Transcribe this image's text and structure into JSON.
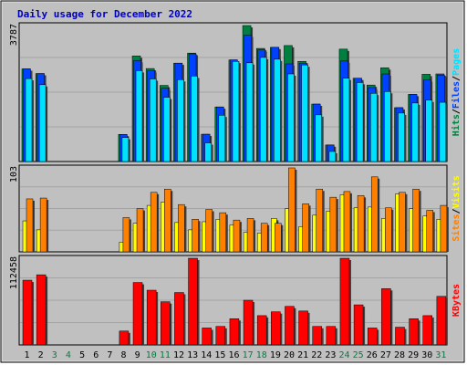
{
  "title": "Daily usage for December 2022",
  "colors": {
    "background": "#c0c0c0",
    "plot": "#c0c0c0",
    "grid": "#a4a4a4",
    "title_text": "#0000c0",
    "hits": "#008040",
    "files": "#0040ff",
    "pages": "#00e0ff",
    "visits": "#ffff00",
    "sites": "#ff8000",
    "kbytes": "#ff0000",
    "weekday_label": "#000000",
    "weekend_label": "#008040"
  },
  "weekend_days": [
    3,
    4,
    10,
    11,
    17,
    18,
    24,
    25,
    31
  ],
  "chart_data": [
    {
      "type": "bar",
      "panel": "hits-files-pages",
      "ymax_label": "3787",
      "ylim": [
        0,
        3787
      ],
      "categories": [
        "1",
        "2",
        "3",
        "4",
        "5",
        "6",
        "7",
        "8",
        "9",
        "10",
        "11",
        "12",
        "13",
        "14",
        "15",
        "16",
        "17",
        "18",
        "19",
        "20",
        "21",
        "22",
        "23",
        "24",
        "25",
        "26",
        "27",
        "28",
        "29",
        "30",
        "31"
      ],
      "legend": [
        "Hits",
        "Files",
        "Pages"
      ],
      "series": [
        {
          "name": "Hits",
          "values": [
            2580,
            2450,
            0,
            0,
            0,
            0,
            0,
            755,
            2940,
            2590,
            2120,
            2740,
            3020,
            760,
            1520,
            2830,
            3787,
            3150,
            3180,
            3230,
            2790,
            1600,
            460,
            3130,
            2320,
            2130,
            2610,
            1500,
            1870,
            2430,
            2440
          ]
        },
        {
          "name": "Files",
          "values": [
            2580,
            2450,
            0,
            0,
            0,
            0,
            0,
            755,
            2810,
            2530,
            2040,
            2740,
            3000,
            760,
            1520,
            2830,
            3520,
            3110,
            3180,
            2720,
            2740,
            1600,
            460,
            2800,
            2320,
            2060,
            2440,
            1500,
            1870,
            2270,
            2410
          ]
        },
        {
          "name": "Pages",
          "values": [
            2310,
            2140,
            0,
            0,
            0,
            0,
            0,
            670,
            2530,
            2300,
            1790,
            2280,
            2380,
            520,
            1290,
            2790,
            2750,
            2900,
            2850,
            2440,
            2690,
            1300,
            280,
            2320,
            2200,
            1900,
            1950,
            1350,
            1630,
            1710,
            1650
          ]
        }
      ]
    },
    {
      "type": "bar",
      "panel": "visits-sites",
      "ymax_label": "103",
      "ylim": [
        0,
        103
      ],
      "categories": [
        "1",
        "2",
        "3",
        "4",
        "5",
        "6",
        "7",
        "8",
        "9",
        "10",
        "11",
        "12",
        "13",
        "14",
        "15",
        "16",
        "17",
        "18",
        "19",
        "20",
        "21",
        "22",
        "23",
        "24",
        "25",
        "26",
        "27",
        "28",
        "29",
        "30",
        "31"
      ],
      "legend": [
        "Sites",
        "Visits"
      ],
      "series": [
        {
          "name": "Visits",
          "values": [
            38,
            27,
            0,
            0,
            0,
            0,
            0,
            12,
            35,
            57,
            61,
            36,
            27,
            37,
            40,
            33,
            24,
            23,
            41,
            53,
            31,
            45,
            50,
            70,
            54,
            55,
            41,
            71,
            53,
            44,
            40
          ]
        },
        {
          "name": "Sites",
          "values": [
            65,
            66,
            0,
            0,
            0,
            0,
            0,
            42,
            53,
            73,
            77,
            58,
            40,
            52,
            48,
            39,
            41,
            35,
            35,
            103,
            59,
            77,
            67,
            74,
            69,
            92,
            54,
            73,
            77,
            51,
            57
          ]
        }
      ]
    },
    {
      "type": "bar",
      "panel": "kbytes",
      "ymax_label": "112458",
      "ylim": [
        0,
        112458
      ],
      "categories": [
        "1",
        "2",
        "3",
        "4",
        "5",
        "6",
        "7",
        "8",
        "9",
        "10",
        "11",
        "12",
        "13",
        "14",
        "15",
        "16",
        "17",
        "18",
        "19",
        "20",
        "21",
        "22",
        "23",
        "24",
        "25",
        "26",
        "27",
        "28",
        "29",
        "30",
        "31"
      ],
      "legend": [
        "KBytes"
      ],
      "series": [
        {
          "name": "KBytes",
          "values": [
            84000,
            91000,
            0,
            0,
            0,
            0,
            0,
            18000,
            81000,
            71000,
            56000,
            68000,
            112458,
            22000,
            24000,
            34000,
            58000,
            38000,
            43000,
            50000,
            44000,
            24000,
            24000,
            112458,
            52000,
            22000,
            73000,
            23000,
            34000,
            38000,
            63000
          ]
        }
      ]
    }
  ]
}
